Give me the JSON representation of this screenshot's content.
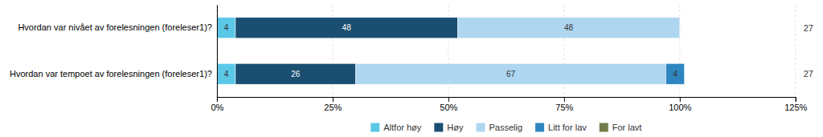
{
  "chart_data": {
    "type": "bar",
    "orientation": "horizontal",
    "stacked": true,
    "categories": [
      "Hvordan var nivået av forelesningen (foreleser1)?",
      "Hvordan var tempoet av forelesningen (foreleser1)?"
    ],
    "series": [
      {
        "name": "Altfor høy",
        "color": "#5bc8e8",
        "values": [
          4,
          4
        ]
      },
      {
        "name": "Høy",
        "color": "#1a4f72",
        "values": [
          48,
          26
        ]
      },
      {
        "name": "Passelig",
        "color": "#aed6f1",
        "values": [
          48,
          67
        ]
      },
      {
        "name": "Litt for lav",
        "color": "#2e86c1",
        "values": [
          0,
          4
        ]
      },
      {
        "name": "For lavt",
        "color": "#717d4a",
        "values": [
          0,
          0
        ]
      }
    ],
    "n_labels": [
      27,
      27
    ],
    "xlim": [
      0,
      125
    ],
    "xticks": [
      {
        "value": 0,
        "label": "0%"
      },
      {
        "value": 25,
        "label": "25%"
      },
      {
        "value": 50,
        "label": "50%"
      },
      {
        "value": 75,
        "label": "75%"
      },
      {
        "value": 100,
        "label": "100%"
      },
      {
        "value": 125,
        "label": "125%"
      }
    ],
    "grid": true,
    "data_labels": true,
    "legend": "bottom"
  }
}
